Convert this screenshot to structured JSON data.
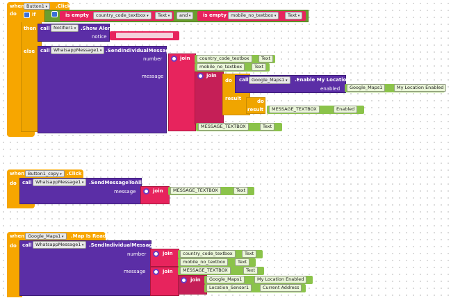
{
  "blocks": {
    "when": "when",
    "do": "do",
    "then": "then",
    "else": "else",
    "call": "call",
    "if": "if",
    "and": "and",
    "result": "result"
  },
  "block1": {
    "component": "Button1",
    "event": ".Click",
    "is_empty_1": "is empty",
    "country_tb": "country_code_textbox",
    "text_prop": "Text",
    "is_empty_2": "is empty",
    "mobile_tb": "mobile_no_textbox",
    "notifier": "Notifier1",
    "show_alert": ".Show Alert",
    "notice": "notice",
    "wa": "WhatsappMessage1",
    "send_individual": ".SendIndividualMessage",
    "number": "number",
    "message": "message",
    "join": "join",
    "gmaps": "Google_Maps1",
    "enable_loc": ".Enable My Location",
    "enabled": "enabled",
    "my_loc_enabled": "My Location Enabled",
    "msg_tb": "MESSAGE_TEXTBOX",
    "enabled_prop": "Enabled"
  },
  "block2": {
    "component": "Button1_copy",
    "event": ".Click",
    "wa": "WhatsappMessage1",
    "send_all": ".SendMessageToAll",
    "message": "message",
    "join": "join",
    "msg_tb": "MESSAGE_TEXTBOX",
    "text_prop": "Text"
  },
  "block3": {
    "component": "Google_Maps1",
    "event": ".Map Is Ready",
    "wa": "WhatsappMessage1",
    "send_individual": ".SendIndividualMessage",
    "number": "number",
    "message": "message",
    "join": "join",
    "country_tb": "country_code_textbox",
    "mobile_tb": "mobile_no_textbox",
    "msg_tb": "MESSAGE_TEXTBOX",
    "text_prop": "Text",
    "gmaps": "Google_Maps1",
    "my_loc_enabled": "My Location Enabled",
    "loc_sensor": "Location_Sensor1",
    "current_address": "Current Address"
  }
}
